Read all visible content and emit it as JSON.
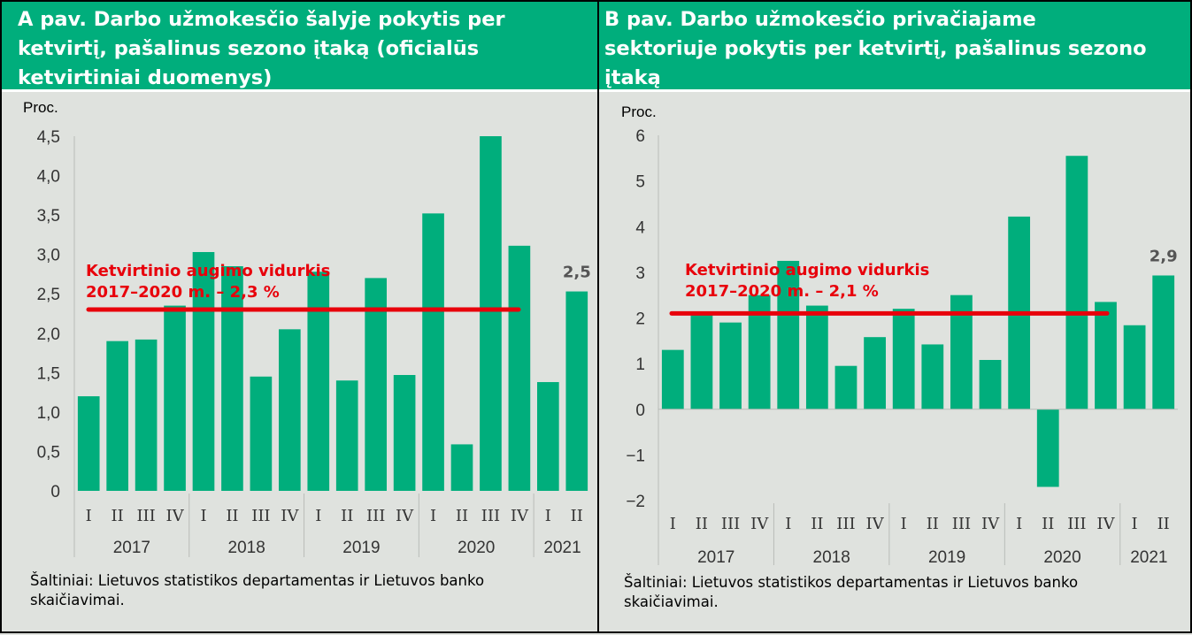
{
  "panel_a": {
    "title": "A pav. Darbo užmokesčio šalyje pokytis per\nketvirtį, pašalinus sezono įtaką (oficialūs\nketvirtiniai duomenys)",
    "unit": "Proc.",
    "source": "Šaltiniai: Lietuvos statistikos departamentas ir Lietuvos banko\nskaičiavimai."
  },
  "panel_b": {
    "title": "B pav. Darbo užmokesčio privačiajame\nsektoriuje pokytis per ketvirtį, pašalinus sezono\nįtaką",
    "unit": "Proc.",
    "source": "Šaltiniai: Lietuvos statistikos departamentas ir Lietuvos banko\nskaičiavimai."
  },
  "chart_data": [
    {
      "type": "bar",
      "id": "a",
      "bar_color": "#00ae7c",
      "average_line_color": "#e8000b",
      "categories": [
        "I",
        "II",
        "III",
        "IV",
        "I",
        "II",
        "III",
        "IV",
        "I",
        "II",
        "III",
        "IV",
        "I",
        "II",
        "III",
        "IV",
        "I",
        "II"
      ],
      "years": [
        {
          "label": "2017",
          "span": 4
        },
        {
          "label": "2018",
          "span": 4
        },
        {
          "label": "2019",
          "span": 4
        },
        {
          "label": "2020",
          "span": 4
        },
        {
          "label": "2021",
          "span": 2
        }
      ],
      "values": [
        1.2,
        1.9,
        1.92,
        2.35,
        3.03,
        2.85,
        1.45,
        2.05,
        2.78,
        1.4,
        2.7,
        1.47,
        3.52,
        0.59,
        4.5,
        3.11,
        1.38,
        2.53
      ],
      "ylim": [
        0,
        4.5
      ],
      "yticks": [
        "0",
        "0,5",
        "1,0",
        "1,5",
        "2,0",
        "2,5",
        "3,0",
        "3,5",
        "4,0",
        "4,5"
      ],
      "ytick_values": [
        0,
        0.5,
        1,
        1.5,
        2,
        2.5,
        3,
        3.5,
        4,
        4.5
      ],
      "average": {
        "value": 2.3,
        "label_line1": "Ketvirtinio augimo vidurkis",
        "label_line2": "2017–2020 m. – 2,3 %"
      },
      "last_value_label": "2,5"
    },
    {
      "type": "bar",
      "id": "b",
      "bar_color": "#00ae7c",
      "average_line_color": "#e8000b",
      "categories": [
        "I",
        "II",
        "III",
        "IV",
        "I",
        "II",
        "III",
        "IV",
        "I",
        "II",
        "III",
        "IV",
        "I",
        "II",
        "III",
        "IV",
        "I",
        "II"
      ],
      "years": [
        {
          "label": "2017",
          "span": 4
        },
        {
          "label": "2018",
          "span": 4
        },
        {
          "label": "2019",
          "span": 4
        },
        {
          "label": "2020",
          "span": 4
        },
        {
          "label": "2021",
          "span": 2
        }
      ],
      "values": [
        1.3,
        2.1,
        1.9,
        2.5,
        3.25,
        2.27,
        0.95,
        1.58,
        2.2,
        1.42,
        2.5,
        1.08,
        4.22,
        -1.7,
        5.55,
        2.35,
        1.84,
        2.93
      ],
      "ylim": [
        -2,
        6
      ],
      "yticks": [
        "−2",
        "−1",
        "0",
        "1",
        "2",
        "3",
        "4",
        "5",
        "6"
      ],
      "ytick_values": [
        -2,
        -1,
        0,
        1,
        2,
        3,
        4,
        5,
        6
      ],
      "average": {
        "value": 2.1,
        "label_line1": "Ketvirtinio augimo vidurkis",
        "label_line2": "2017–2020 m. – 2,1 %"
      },
      "last_value_label": "2,9"
    }
  ]
}
